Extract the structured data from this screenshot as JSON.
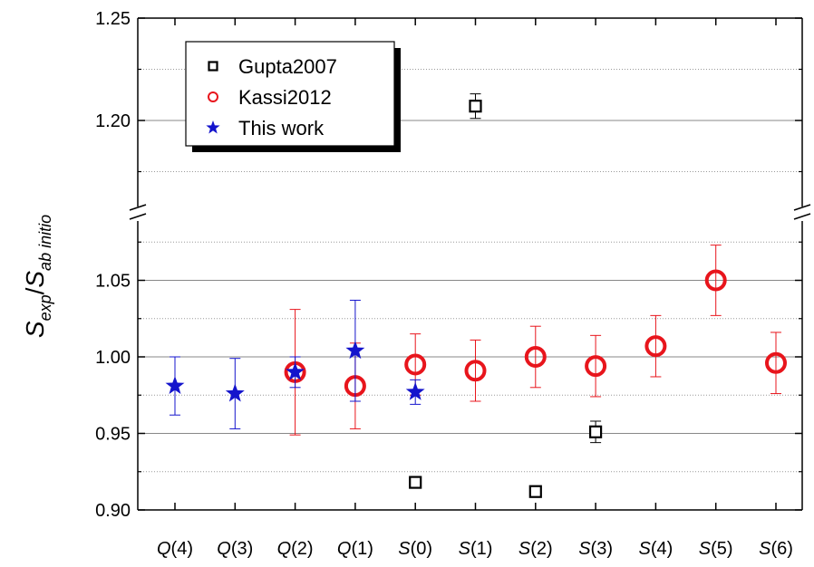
{
  "chart_data": {
    "type": "scatter",
    "title": "",
    "xlabel": "",
    "ylabel": {
      "base1": "S",
      "sub1": "exp",
      "slash": "/",
      "base2": "S",
      "sub2": "ab initio"
    },
    "categories": [
      {
        "prefix": "Q",
        "suffix": "(4)"
      },
      {
        "prefix": "Q",
        "suffix": "(3)"
      },
      {
        "prefix": "Q",
        "suffix": "(2)"
      },
      {
        "prefix": "Q",
        "suffix": "(1)"
      },
      {
        "prefix": "S",
        "suffix": "(0)"
      },
      {
        "prefix": "S",
        "suffix": "(1)"
      },
      {
        "prefix": "S",
        "suffix": "(2)"
      },
      {
        "prefix": "S",
        "suffix": "(3)"
      },
      {
        "prefix": "S",
        "suffix": "(4)"
      },
      {
        "prefix": "S",
        "suffix": "(5)"
      },
      {
        "prefix": "S",
        "suffix": "(6)"
      }
    ],
    "y_axis": {
      "broken": true,
      "lower_range": [
        0.9,
        1.085
      ],
      "upper_range": [
        1.165,
        1.25
      ],
      "tick_labels": [
        "0.90",
        "0.95",
        "1.00",
        "1.05",
        "1.20",
        "1.25"
      ],
      "tick_values": [
        0.9,
        0.95,
        1.0,
        1.05,
        1.2,
        1.25
      ],
      "major_grid": [
        0.95,
        1.0,
        1.05,
        1.2
      ],
      "minor_grid": [
        0.925,
        0.975,
        1.025,
        1.075,
        1.175,
        1.225
      ]
    },
    "legend_position": "top-left",
    "series": [
      {
        "name": "Gupta2007",
        "marker": "square",
        "color": "#000000",
        "points": [
          {
            "cat": 4,
            "y": 0.918,
            "err": 0.002
          },
          {
            "cat": 5,
            "y": 1.207,
            "err": 0.006
          },
          {
            "cat": 6,
            "y": 0.912,
            "err": 0.002
          },
          {
            "cat": 7,
            "y": 0.951,
            "err": 0.007
          }
        ]
      },
      {
        "name": "Kassi2012",
        "marker": "circle",
        "color": "#e8151c",
        "points": [
          {
            "cat": 2,
            "y": 0.99,
            "err": 0.041
          },
          {
            "cat": 3,
            "y": 0.981,
            "err": 0.028
          },
          {
            "cat": 4,
            "y": 0.995,
            "err": 0.02
          },
          {
            "cat": 5,
            "y": 0.991,
            "err": 0.02
          },
          {
            "cat": 6,
            "y": 1.0,
            "err": 0.02
          },
          {
            "cat": 7,
            "y": 0.994,
            "err": 0.02
          },
          {
            "cat": 8,
            "y": 1.007,
            "err": 0.02
          },
          {
            "cat": 9,
            "y": 1.05,
            "err": 0.023
          },
          {
            "cat": 10,
            "y": 0.996,
            "err": 0.02
          }
        ]
      },
      {
        "name": "This work",
        "marker": "star",
        "color": "#1414cc",
        "points": [
          {
            "cat": 0,
            "y": 0.981,
            "err": 0.019
          },
          {
            "cat": 1,
            "y": 0.976,
            "err": 0.023
          },
          {
            "cat": 2,
            "y": 0.99,
            "err": 0.01
          },
          {
            "cat": 3,
            "y": 1.004,
            "err": 0.033
          },
          {
            "cat": 4,
            "y": 0.977,
            "err": 0.008
          }
        ]
      }
    ]
  }
}
